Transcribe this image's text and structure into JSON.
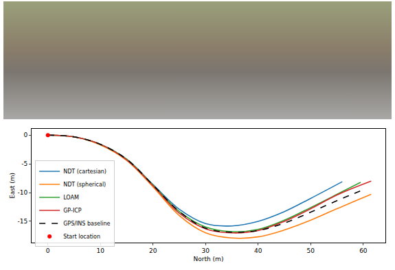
{
  "chart_data": {
    "type": "line",
    "x_label": "North (m)",
    "y_label": "East (m)",
    "xlim": [
      -3.1,
      64.2
    ],
    "ylim": [
      -18.7,
      1.1
    ],
    "xticks": [
      0,
      10,
      20,
      30,
      40,
      50,
      60
    ],
    "yticks": [
      0,
      -5,
      -10,
      -15
    ],
    "grid": false,
    "legend": "upper left",
    "series": [
      {
        "name": "NDT (cartesian)",
        "color": "#1f77b4",
        "type": "line",
        "line_style": "solid",
        "x": [
          0,
          5,
          10,
          15,
          20,
          25,
          30,
          35,
          40,
          45,
          50,
          56
        ],
        "values": [
          0,
          -0.3,
          -1.6,
          -4.2,
          -8.6,
          -12.9,
          -15.4,
          -15.8,
          -15,
          -13.3,
          -11,
          -8.1
        ]
      },
      {
        "name": "NDT (spherical)",
        "color": "#ff7f0e",
        "type": "line",
        "line_style": "solid",
        "x": [
          0,
          5,
          10,
          15,
          20,
          25,
          30,
          35,
          40,
          45,
          50,
          55,
          61.5
        ],
        "values": [
          0,
          -0.3,
          -1.7,
          -4.4,
          -9,
          -14,
          -17,
          -17.9,
          -17.7,
          -16.5,
          -14.8,
          -12.8,
          -10.3
        ]
      },
      {
        "name": "LOAM",
        "color": "#2ca02c",
        "type": "line",
        "line_style": "solid",
        "x": [
          0,
          5,
          10,
          15,
          20,
          25,
          30,
          35,
          40,
          45,
          50,
          55,
          59.5
        ],
        "values": [
          0,
          -0.3,
          -1.6,
          -4.2,
          -8.7,
          -13.3,
          -16,
          -16.8,
          -16.4,
          -14.8,
          -12.6,
          -10.3,
          -8.2
        ]
      },
      {
        "name": "GP-ICP",
        "color": "#d62728",
        "type": "line",
        "line_style": "solid",
        "x": [
          0,
          5,
          10,
          15,
          20,
          25,
          30,
          35,
          40,
          45,
          50,
          55,
          61.5
        ],
        "values": [
          0,
          -0.3,
          -1.6,
          -4.3,
          -8.8,
          -13.6,
          -16.3,
          -17,
          -16.6,
          -15,
          -12.8,
          -10.4,
          -8
        ]
      },
      {
        "name": "GPS/INS baseline",
        "color": "#000000",
        "type": "line",
        "line_style": "dashed",
        "x": [
          0,
          5,
          10,
          15,
          20,
          25,
          30,
          35,
          40,
          45,
          50,
          55,
          60.5
        ],
        "values": [
          0,
          -0.3,
          -1.6,
          -4.2,
          -8.7,
          -13.3,
          -16.2,
          -16.9,
          -16.6,
          -15.3,
          -13.4,
          -11.4,
          -9.3
        ]
      },
      {
        "name": "Start location",
        "color": "#ff0000",
        "type": "scatter",
        "marker": "circle",
        "x": [
          0
        ],
        "values": [
          0
        ]
      }
    ]
  }
}
